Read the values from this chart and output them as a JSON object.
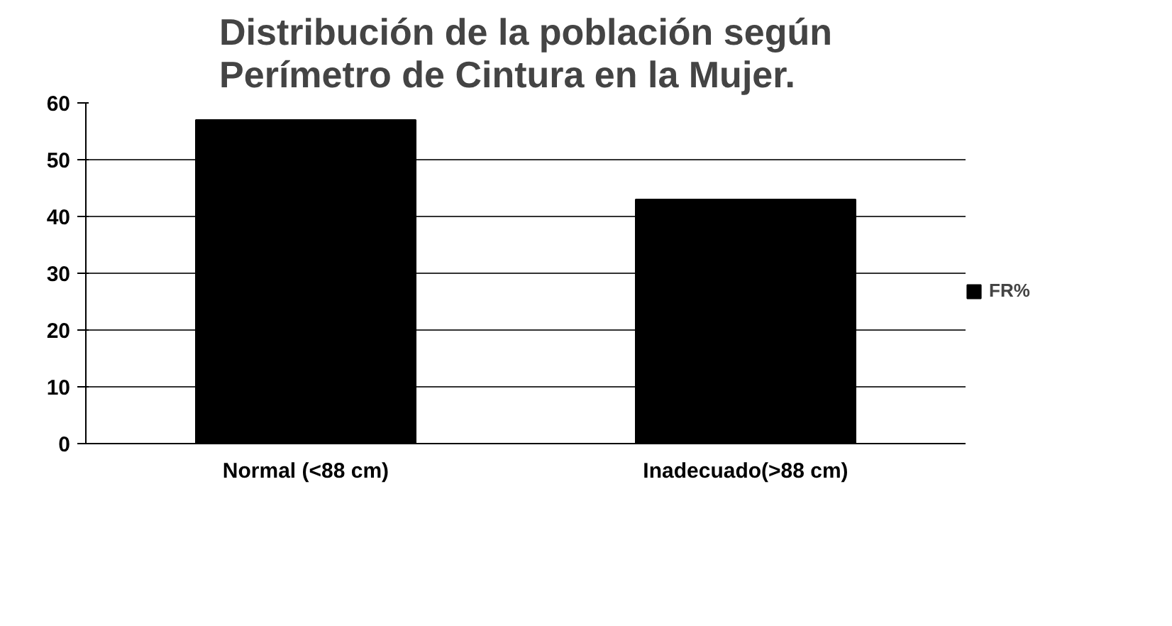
{
  "chart_data": {
    "type": "bar",
    "title": "Distribución de la población según Perímetro de Cintura en la Mujer.",
    "categories": [
      "Normal (<88 cm)",
      "Inadecuado(>88 cm)"
    ],
    "series": [
      {
        "name": "FR%",
        "color": "#000000",
        "values": [
          57,
          43
        ]
      }
    ],
    "ylim": [
      0,
      60
    ],
    "yticks": [
      0,
      10,
      20,
      30,
      40,
      50,
      60
    ],
    "grid": "y",
    "legend": "right"
  }
}
